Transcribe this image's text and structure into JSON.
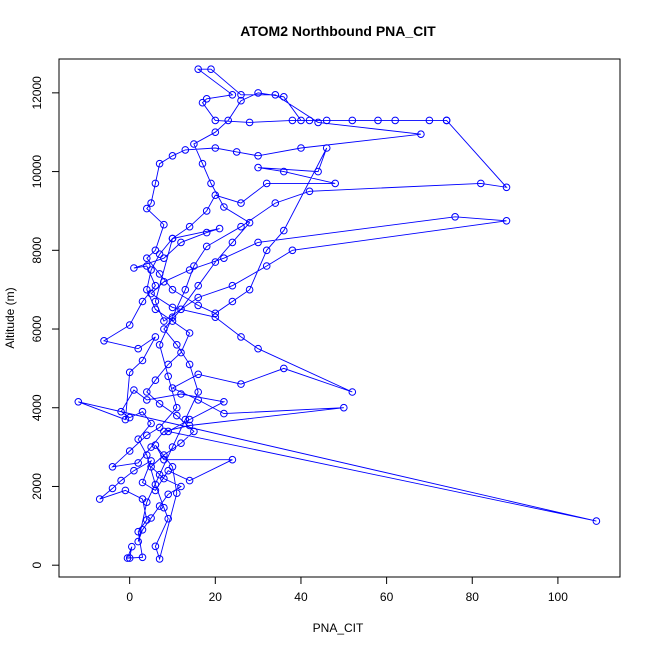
{
  "chart_data": {
    "type": "scatter",
    "title": "ATOM2 Northbound PNA_CIT",
    "xlabel": "PNA_CIT",
    "ylabel": "Altitude (m)",
    "xlim": [
      -16.5,
      114.5
    ],
    "ylim": [
      -300,
      12860
    ],
    "xticks": [
      "0",
      "20",
      "40",
      "60",
      "80",
      "100"
    ],
    "yticks": [
      "0",
      "2000",
      "4000",
      "6000",
      "8000",
      "10000",
      "12000"
    ],
    "grid": false,
    "connected": true,
    "series": [
      {
        "color": "#0000ff",
        "marker": "open-circle",
        "points": [
          [
            0,
            180
          ],
          [
            0.5,
            470
          ],
          [
            -0.5,
            180
          ],
          [
            3,
            200
          ],
          [
            2,
            850
          ],
          [
            4,
            1150
          ],
          [
            3,
            1680
          ],
          [
            -1,
            1900
          ],
          [
            -7,
            1680
          ],
          [
            -4,
            1950
          ],
          [
            -2,
            2150
          ],
          [
            1,
            2400
          ],
          [
            5,
            2650
          ],
          [
            3,
            2100
          ],
          [
            6,
            1900
          ],
          [
            9,
            2400
          ],
          [
            14,
            2150
          ],
          [
            24,
            2680
          ],
          [
            8,
            2680
          ],
          [
            6,
            3050
          ],
          [
            10,
            2500
          ],
          [
            11,
            1830
          ],
          [
            7,
            160
          ],
          [
            6,
            480
          ],
          [
            9,
            1180
          ],
          [
            8,
            1460
          ],
          [
            6,
            2050
          ],
          [
            4,
            2800
          ],
          [
            2,
            3200
          ],
          [
            5,
            3600
          ],
          [
            3,
            3900
          ],
          [
            0,
            3750
          ],
          [
            -2,
            3900
          ],
          [
            1,
            4450
          ],
          [
            4,
            4200
          ],
          [
            12,
            4350
          ],
          [
            22,
            4150
          ],
          [
            14,
            3700
          ],
          [
            9,
            3400
          ],
          [
            109,
            1120
          ],
          [
            -12,
            4150
          ],
          [
            -1,
            3700
          ],
          [
            0,
            4900
          ],
          [
            3,
            5200
          ],
          [
            6,
            5800
          ],
          [
            2,
            5500
          ],
          [
            -6,
            5700
          ],
          [
            0,
            6100
          ],
          [
            3,
            6700
          ],
          [
            6,
            7100
          ],
          [
            4,
            7600
          ],
          [
            1,
            7550
          ],
          [
            8,
            7800
          ],
          [
            12,
            8200
          ],
          [
            18,
            8450
          ],
          [
            21,
            8550
          ],
          [
            10,
            8300
          ],
          [
            6,
            6700
          ],
          [
            8,
            6200
          ],
          [
            16,
            6800
          ],
          [
            24,
            7100
          ],
          [
            32,
            7600
          ],
          [
            38,
            8000
          ],
          [
            88,
            8750
          ],
          [
            76,
            8850
          ],
          [
            30,
            8200
          ],
          [
            22,
            7800
          ],
          [
            14,
            7500
          ],
          [
            8,
            7200
          ],
          [
            5,
            6900
          ],
          [
            10,
            6550
          ],
          [
            20,
            6300
          ],
          [
            26,
            5800
          ],
          [
            30,
            5500
          ],
          [
            52,
            4400
          ],
          [
            36,
            5000
          ],
          [
            26,
            4600
          ],
          [
            16,
            4850
          ],
          [
            10,
            4500
          ],
          [
            16,
            4200
          ],
          [
            22,
            3850
          ],
          [
            50,
            4000
          ],
          [
            14,
            3550
          ],
          [
            8,
            3400
          ],
          [
            5,
            3000
          ],
          [
            2,
            2600
          ],
          [
            -4,
            2500
          ],
          [
            0,
            2900
          ],
          [
            4,
            3300
          ],
          [
            7,
            3500
          ],
          [
            11,
            4000
          ],
          [
            9,
            4800
          ],
          [
            7,
            5600
          ],
          [
            10,
            6300
          ],
          [
            13,
            7000
          ],
          [
            15,
            7600
          ],
          [
            18,
            8100
          ],
          [
            26,
            8600
          ],
          [
            34,
            9200
          ],
          [
            42,
            9500
          ],
          [
            82,
            9700
          ],
          [
            88,
            9600
          ],
          [
            74,
            11300
          ],
          [
            42,
            11300
          ],
          [
            38,
            11300
          ],
          [
            28,
            11250
          ],
          [
            20,
            11300
          ],
          [
            17,
            11750
          ],
          [
            18,
            11850
          ],
          [
            24,
            11950
          ],
          [
            16,
            12600
          ],
          [
            19,
            12600
          ],
          [
            26,
            11950
          ],
          [
            34,
            11950
          ],
          [
            44,
            11250
          ],
          [
            68,
            10950
          ],
          [
            40,
            10600
          ],
          [
            30,
            10400
          ],
          [
            25,
            10500
          ],
          [
            20,
            10600
          ],
          [
            13,
            10550
          ],
          [
            10,
            10400
          ],
          [
            7,
            10200
          ],
          [
            6,
            9700
          ],
          [
            5,
            9200
          ],
          [
            4,
            9060
          ],
          [
            8,
            8650
          ],
          [
            6,
            8000
          ],
          [
            4,
            7800
          ],
          [
            7,
            7400
          ],
          [
            10,
            7000
          ],
          [
            16,
            6600
          ],
          [
            20,
            6400
          ],
          [
            24,
            6700
          ],
          [
            28,
            7000
          ],
          [
            32,
            8000
          ],
          [
            36,
            8500
          ],
          [
            46,
            10600
          ],
          [
            44,
            10000
          ],
          [
            30,
            10100
          ],
          [
            36,
            10000
          ],
          [
            48,
            9700
          ],
          [
            32,
            9700
          ],
          [
            26,
            9200
          ],
          [
            20,
            9400
          ],
          [
            18,
            9000
          ],
          [
            14,
            8600
          ],
          [
            10,
            8300
          ],
          [
            7,
            7900
          ],
          [
            5,
            7500
          ],
          [
            4,
            7000
          ],
          [
            6,
            6500
          ],
          [
            10,
            6200
          ],
          [
            14,
            5900
          ],
          [
            12,
            5400
          ],
          [
            9,
            5100
          ],
          [
            6,
            4700
          ],
          [
            4,
            4400
          ],
          [
            7,
            4100
          ],
          [
            11,
            3800
          ],
          [
            15,
            3400
          ],
          [
            12,
            3100
          ],
          [
            8,
            2800
          ],
          [
            5,
            2500
          ],
          [
            8,
            2200
          ],
          [
            12,
            2000
          ],
          [
            9,
            1800
          ],
          [
            7,
            1500
          ],
          [
            5,
            1200
          ],
          [
            3,
            900
          ],
          [
            2,
            600
          ],
          [
            4,
            1600
          ],
          [
            7,
            2300
          ],
          [
            10,
            3000
          ],
          [
            13,
            3700
          ],
          [
            16,
            4400
          ],
          [
            14,
            5100
          ],
          [
            11,
            5600
          ],
          [
            8,
            6000
          ],
          [
            12,
            6500
          ],
          [
            16,
            7100
          ],
          [
            20,
            7700
          ],
          [
            24,
            8200
          ],
          [
            28,
            8700
          ],
          [
            22,
            9100
          ],
          [
            19,
            9700
          ],
          [
            17,
            10200
          ],
          [
            15,
            10700
          ],
          [
            20,
            11000
          ],
          [
            23,
            11300
          ],
          [
            26,
            11800
          ],
          [
            30,
            12000
          ],
          [
            36,
            11900
          ],
          [
            40,
            11300
          ],
          [
            46,
            11300
          ],
          [
            52,
            11300
          ],
          [
            58,
            11300
          ],
          [
            62,
            11300
          ],
          [
            70,
            11300
          ],
          [
            74,
            11300
          ]
        ]
      }
    ]
  }
}
